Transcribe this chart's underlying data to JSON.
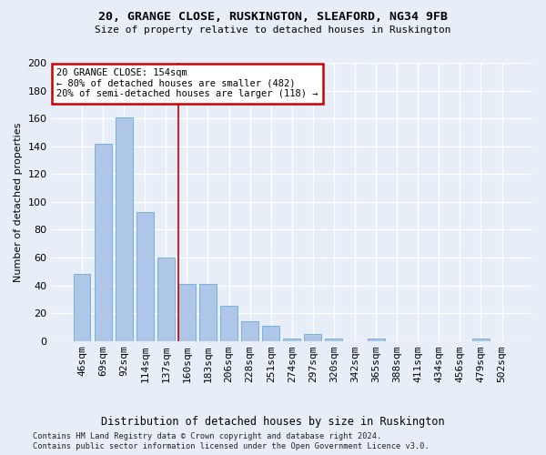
{
  "title": "20, GRANGE CLOSE, RUSKINGTON, SLEAFORD, NG34 9FB",
  "subtitle": "Size of property relative to detached houses in Ruskington",
  "xlabel": "Distribution of detached houses by size in Ruskington",
  "ylabel": "Number of detached properties",
  "categories": [
    "46sqm",
    "69sqm",
    "92sqm",
    "114sqm",
    "137sqm",
    "160sqm",
    "183sqm",
    "206sqm",
    "228sqm",
    "251sqm",
    "274sqm",
    "297sqm",
    "320sqm",
    "342sqm",
    "365sqm",
    "388sqm",
    "411sqm",
    "434sqm",
    "456sqm",
    "479sqm",
    "502sqm"
  ],
  "values": [
    48,
    142,
    161,
    93,
    60,
    41,
    41,
    25,
    14,
    11,
    2,
    5,
    2,
    0,
    2,
    0,
    0,
    0,
    0,
    2,
    0
  ],
  "bar_color": "#aec6e8",
  "bar_edge_color": "#5a9fd4",
  "annotation_text_line1": "20 GRANGE CLOSE: 154sqm",
  "annotation_text_line2": "← 80% of detached houses are smaller (482)",
  "annotation_text_line3": "20% of semi-detached houses are larger (118) →",
  "annotation_box_color": "#ffffff",
  "annotation_box_edge": "#cc0000",
  "vline_color": "#cc0000",
  "vline_bar_index": 5,
  "bg_color": "#e8eef8",
  "grid_color": "#ffffff",
  "footnote1": "Contains HM Land Registry data © Crown copyright and database right 2024.",
  "footnote2": "Contains public sector information licensed under the Open Government Licence v3.0.",
  "ylim": [
    0,
    200
  ],
  "yticks": [
    0,
    20,
    40,
    60,
    80,
    100,
    120,
    140,
    160,
    180,
    200
  ]
}
